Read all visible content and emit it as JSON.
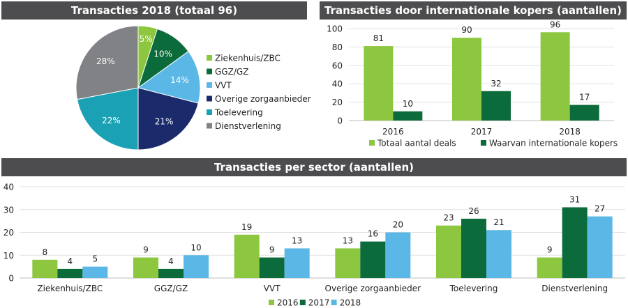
{
  "colors": {
    "light_green": "#8dc63f",
    "dark_green": "#0b6b3a",
    "light_blue": "#5bb8e6",
    "navy": "#1b2a6b",
    "teal": "#1aa1b4",
    "grey": "#808285",
    "title_bg": "#4d4d4f"
  },
  "chart_data": [
    {
      "type": "pie",
      "title": "Transacties 2018 (totaal 96)",
      "categories": [
        "Ziekenhuis/ZBC",
        "GGZ/GZ",
        "VVT",
        "Overige zorgaanbieder",
        "Toelevering",
        "Dienstverlening"
      ],
      "values": [
        5,
        10,
        14,
        21,
        22,
        28
      ],
      "labels": [
        "5%",
        "10%",
        "14%",
        "21%",
        "22%",
        "28%"
      ],
      "colors": [
        "#8dc63f",
        "#0b6b3a",
        "#5bb8e6",
        "#1b2a6b",
        "#1aa1b4",
        "#808285"
      ],
      "legend": "right"
    },
    {
      "type": "bar",
      "title": "Transacties door internationale kopers (aantallen)",
      "categories": [
        "2016",
        "2017",
        "2018"
      ],
      "series": [
        {
          "name": "Totaal aantal deals",
          "values": [
            81,
            90,
            96
          ],
          "color": "#8dc63f"
        },
        {
          "name": "Waarvan internationale kopers",
          "values": [
            10,
            32,
            17
          ],
          "color": "#0b6b3a"
        }
      ],
      "ylim": [
        0,
        100
      ],
      "yticks": [
        "0",
        "20",
        "40",
        "60",
        "80",
        "100"
      ],
      "grid": true,
      "legend": "bottom"
    },
    {
      "type": "bar",
      "title": "Transacties per sector (aantallen)",
      "categories": [
        "Ziekenhuis/ZBC",
        "GGZ/GZ",
        "VVT",
        "Overige zorgaanbieder",
        "Toelevering",
        "Dienstverlening"
      ],
      "series": [
        {
          "name": "2016",
          "values": [
            8,
            9,
            19,
            13,
            23,
            9
          ],
          "color": "#8dc63f"
        },
        {
          "name": "2017",
          "values": [
            4,
            4,
            9,
            16,
            26,
            31
          ],
          "color": "#0b6b3a"
        },
        {
          "name": "2018",
          "values": [
            5,
            10,
            13,
            20,
            21,
            27
          ],
          "color": "#5bb8e6"
        }
      ],
      "ylim": [
        0,
        40
      ],
      "yticks": [
        "0",
        "10",
        "20",
        "30",
        "40"
      ],
      "grid": true,
      "legend": "bottom"
    }
  ]
}
